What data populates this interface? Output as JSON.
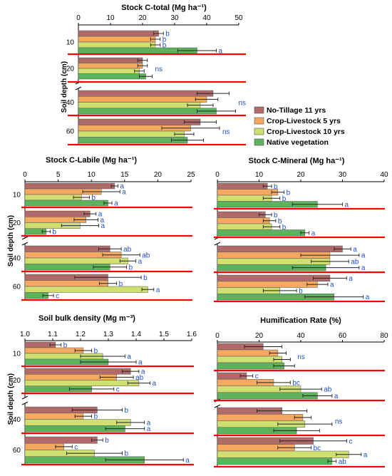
{
  "figure": {
    "ylabel": "Soil depth (cm)",
    "legend": [
      {
        "label": "No-Tillage 11 yrs",
        "color": "#b06a6a"
      },
      {
        "label": "Crop-Livestock 5 yrs",
        "color": "#f4a860"
      },
      {
        "label": "Crop-Livestock 10 yrs",
        "color": "#cfe070"
      },
      {
        "label": "Native vegetation",
        "color": "#5cb35c"
      }
    ],
    "colors": {
      "separator": "#ff0000",
      "letters": "#1f4fd0",
      "bar_edge": "#555555"
    }
  },
  "chart_data": [
    {
      "type": "bar",
      "title": "Stock C-total (Mg ha⁻¹)",
      "ylabel": "Soil depth (cm)",
      "orientation": "horizontal",
      "categories": [
        "10",
        "20",
        "40",
        "60"
      ],
      "xlim": [
        0,
        50
      ],
      "xticks": [
        "0",
        "10",
        "20",
        "30",
        "40",
        "50"
      ],
      "series": [
        {
          "name": "No-Tillage 11 yrs",
          "values": [
            25,
            20,
            42,
            38
          ],
          "errors": [
            1.5,
            1.5,
            5,
            5
          ]
        },
        {
          "name": "Crop-Livestock 5 yrs",
          "values": [
            24,
            20,
            40,
            35
          ],
          "errors": [
            1.5,
            1.5,
            3.5,
            9
          ]
        },
        {
          "name": "Crop-Livestock 10 yrs",
          "values": [
            24,
            19,
            38,
            33
          ],
          "errors": [
            1.5,
            1.5,
            4,
            3
          ]
        },
        {
          "name": "Native vegetation",
          "values": [
            37,
            21,
            43,
            34
          ],
          "errors": [
            6,
            2,
            6,
            5
          ]
        }
      ],
      "letters": [
        [
          "b",
          "b",
          "b",
          "a"
        ],
        [
          "ns"
        ],
        [
          "ns"
        ],
        [
          "ns"
        ]
      ]
    },
    {
      "type": "bar",
      "title": "Stock C-Labile (Mg ha⁻¹)",
      "ylabel": "Soil depth (cm)",
      "orientation": "horizontal",
      "categories": [
        "10",
        "20",
        "40",
        "60"
      ],
      "xlim": [
        0,
        25
      ],
      "xticks": [
        "0",
        "5",
        "10",
        "15",
        "20",
        "25"
      ],
      "series": [
        {
          "name": "No-Tillage 11 yrs",
          "values": [
            13.5,
            9.8,
            12.8,
            12.5
          ],
          "errors": [
            0.5,
            0.9,
            1.7,
            5
          ]
        },
        {
          "name": "Crop-Livestock 5 yrs",
          "values": [
            11.5,
            9.2,
            14.5,
            12.5
          ],
          "errors": [
            2.8,
            1.8,
            2.8,
            1.3
          ]
        },
        {
          "name": "Crop-Livestock 10 yrs",
          "values": [
            8.5,
            8.3,
            15.5,
            18.5
          ],
          "errors": [
            1.2,
            2.8,
            1.2,
            0.9
          ]
        },
        {
          "name": "Native vegetation",
          "values": [
            12.5,
            3.2,
            12.8,
            3.5
          ],
          "errors": [
            0.6,
            0.6,
            2.5,
            0.8
          ]
        }
      ],
      "letters": [
        [
          "a",
          "a",
          "b",
          "a"
        ],
        [
          "a",
          "a",
          "a",
          "b"
        ],
        [
          "ab",
          "ab",
          "a",
          "b"
        ],
        [
          "b",
          "b",
          "a",
          "c"
        ]
      ]
    },
    {
      "type": "bar",
      "title": "Stock C-Mineral (Mg ha⁻¹)",
      "ylabel": "Soil depth (cm)",
      "orientation": "horizontal",
      "categories": [
        "10",
        "20",
        "40",
        "60"
      ],
      "xlim": [
        0,
        40
      ],
      "xticks": [
        "0",
        "10",
        "20",
        "30",
        "40"
      ],
      "series": [
        {
          "name": "No-Tillage 11 yrs",
          "values": [
            12,
            11.5,
            30,
            27
          ],
          "errors": [
            1,
            1.5,
            2,
            4
          ]
        },
        {
          "name": "Crop-Livestock 5 yrs",
          "values": [
            14.5,
            12.5,
            27,
            24
          ],
          "errors": [
            1.5,
            1.5,
            7,
            2.5
          ]
        },
        {
          "name": "Crop-Livestock 10 yrs",
          "values": [
            13,
            13,
            27,
            15
          ],
          "errors": [
            2,
            2,
            4.5,
            4
          ]
        },
        {
          "name": "Native vegetation",
          "values": [
            24,
            21,
            26,
            28
          ],
          "errors": [
            6,
            1,
            8,
            7
          ]
        }
      ],
      "letters": [
        [
          "b",
          "b",
          "b",
          "a"
        ],
        [
          "b",
          "b",
          "b",
          "a"
        ],
        [
          "a",
          "a",
          "ab",
          "a"
        ],
        [
          "a",
          "a",
          "b",
          "a"
        ]
      ]
    },
    {
      "type": "bar",
      "title": "Soil bulk density (Mg m⁻³)",
      "ylabel": "Soil depth (cm)",
      "orientation": "horizontal",
      "categories": [
        "10",
        "20",
        "40",
        "60"
      ],
      "xlim": [
        1.0,
        1.6
      ],
      "xticks": [
        "1.0",
        "1.1",
        "1.2",
        "1.3",
        "1.4",
        "1.5",
        "1.6"
      ],
      "series": [
        {
          "name": "No-Tillage 11 yrs",
          "values": [
            1.11,
            1.38,
            1.26,
            1.26
          ],
          "errors": [
            0.02,
            0.03,
            0.09,
            0.02
          ]
        },
        {
          "name": "Crop-Livestock 5 yrs",
          "values": [
            1.21,
            1.33,
            1.21,
            1.14
          ],
          "errors": [
            0.03,
            0.06,
            0.03,
            0.03
          ]
        },
        {
          "name": "Crop-Livestock 10 yrs",
          "values": [
            1.28,
            1.41,
            1.38,
            1.25
          ],
          "errors": [
            0.08,
            0.04,
            0.05,
            0.1
          ]
        },
        {
          "name": "Native vegetation",
          "values": [
            1.3,
            1.24,
            1.36,
            1.43
          ],
          "errors": [
            0.1,
            0.08,
            0.07,
            0.14
          ]
        }
      ],
      "letters": [
        [
          "b",
          "b",
          "a",
          "a"
        ],
        [
          "a",
          "ab",
          "a",
          "c"
        ],
        [
          "b",
          "b",
          "a",
          "a"
        ],
        [
          "b",
          "c",
          "b",
          "a"
        ]
      ]
    },
    {
      "type": "bar",
      "title": "Humification Rate (%)",
      "ylabel": "Soil depth (cm)",
      "orientation": "horizontal",
      "categories": [
        "10",
        "20",
        "40",
        "60"
      ],
      "xlim": [
        0,
        80
      ],
      "xticks": [
        "0",
        "20",
        "40",
        "60",
        "80"
      ],
      "series": [
        {
          "name": "No-Tillage 11 yrs",
          "values": [
            22,
            14,
            31,
            46
          ],
          "errors": [
            9,
            3,
            12,
            16
          ]
        },
        {
          "name": "Crop-Livestock 5 yrs",
          "values": [
            29,
            27,
            41,
            37
          ],
          "errors": [
            4,
            8,
            4,
            8
          ]
        },
        {
          "name": "Crop-Livestock 10 yrs",
          "values": [
            31,
            40,
            42,
            63
          ],
          "errors": [
            4,
            10,
            13,
            6
          ]
        },
        {
          "name": "Native vegetation",
          "values": [
            32,
            48,
            38,
            55
          ],
          "errors": [
            5,
            7,
            11,
            2
          ]
        }
      ],
      "letters": [
        [
          "ns"
        ],
        [
          "c",
          "bc",
          "ab",
          "a"
        ],
        [
          "ns"
        ],
        [
          "c",
          "bc",
          "a",
          "ab"
        ]
      ]
    }
  ]
}
